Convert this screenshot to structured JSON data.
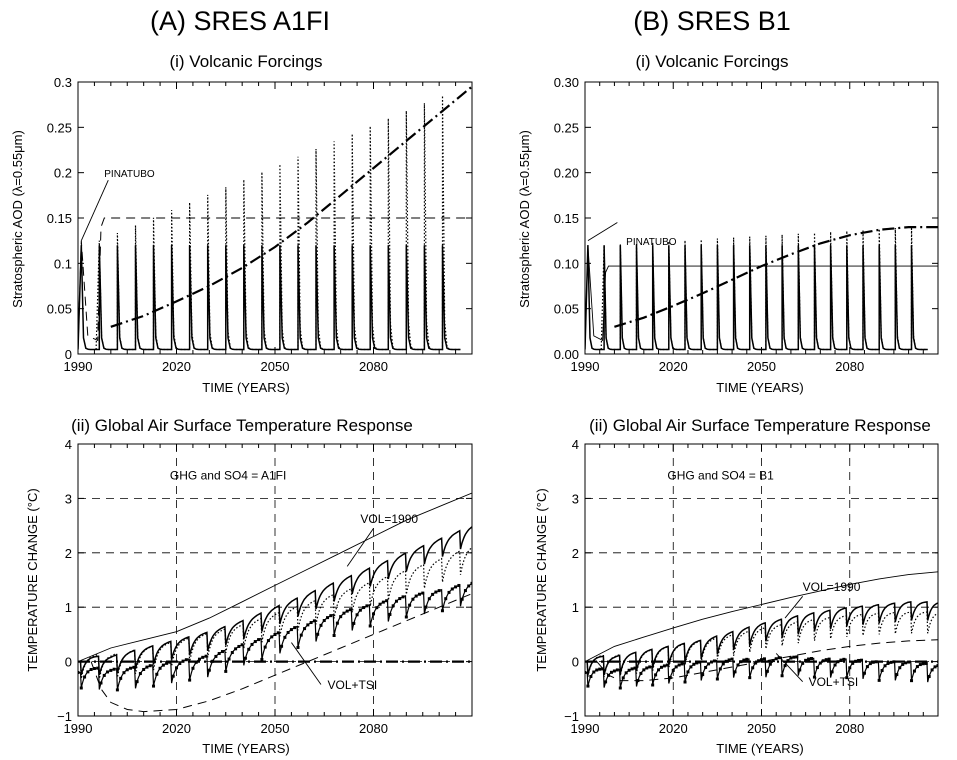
{
  "columns": [
    {
      "heading": "(A) SRES A1FI"
    },
    {
      "heading": "(B) SRES B1"
    }
  ],
  "chart_data": [
    {
      "panel": "A-i",
      "type": "line",
      "title": "(i) Volcanic Forcings",
      "xlabel": "TIME (YEARS)",
      "ylabel": "Stratospheric AOD (λ=0.55μm)",
      "xlim": [
        1990,
        2110
      ],
      "ylim": [
        0,
        0.3
      ],
      "xticks": [
        1990,
        2020,
        2050,
        2080
      ],
      "xtick_labels": [
        "1990",
        "2020",
        "2050",
        "2080"
      ],
      "yticks": [
        0,
        0.05,
        0.1,
        0.15,
        0.2,
        0.25,
        0.3
      ],
      "ytick_labels": [
        "0",
        "0.05",
        "0.1",
        "0.15",
        "0.2",
        "0.25",
        "0.3"
      ],
      "grid": false,
      "annotations": [
        {
          "text": "PINATUBO",
          "x": 1991,
          "y": 0.125
        }
      ],
      "series": [
        {
          "style": "solid",
          "kind": "pulses",
          "x_start": 1991,
          "period": 5.5,
          "count": 21,
          "peak": [
            0.12,
            0.12
          ]
        },
        {
          "style": "dotted",
          "kind": "pulses",
          "x_start": 1996.5,
          "period": 5.5,
          "count": 20,
          "peak": [
            0.125,
            0.285
          ]
        },
        {
          "style": "dashed",
          "kind": "line",
          "x": [
            1990,
            1991,
            1993,
            1996,
            1997,
            1998,
            2110
          ],
          "y": [
            0.005,
            0.125,
            0.02,
            0.015,
            0.14,
            0.15,
            0.15
          ]
        },
        {
          "style": "dash-dot",
          "kind": "line",
          "x": [
            2000,
            2010,
            2020,
            2030,
            2040,
            2050,
            2060,
            2070,
            2080,
            2090,
            2100,
            2110
          ],
          "y": [
            0.03,
            0.042,
            0.058,
            0.075,
            0.095,
            0.118,
            0.145,
            0.175,
            0.205,
            0.235,
            0.265,
            0.295
          ]
        }
      ]
    },
    {
      "panel": "B-i",
      "type": "line",
      "title": "(i) Volcanic Forcings",
      "xlabel": "TIME (YEARS)",
      "ylabel": "Stratospheric AOD (λ=0.55μm)",
      "xlim": [
        1990,
        2110
      ],
      "ylim": [
        0,
        0.3
      ],
      "xticks": [
        1990,
        2020,
        2050,
        2080
      ],
      "xtick_labels": [
        "1990",
        "2020",
        "2050",
        "2080"
      ],
      "yticks": [
        0,
        0.05,
        0.1,
        0.15,
        0.2,
        0.25,
        0.3
      ],
      "ytick_labels": [
        "0.00",
        "0.05",
        "0.10",
        "0.15",
        "0.20",
        "0.25",
        "0.30"
      ],
      "grid": false,
      "annotations": [
        {
          "text": "PINATUBO",
          "x": 1991,
          "y": 0.125
        }
      ],
      "series": [
        {
          "style": "solid",
          "kind": "pulses",
          "x_start": 1991,
          "period": 5.5,
          "count": 21,
          "peak": [
            0.12,
            0.12
          ]
        },
        {
          "style": "dotted",
          "kind": "pulses",
          "x_start": 1996.5,
          "period": 5.5,
          "count": 20,
          "peak": [
            0.12,
            0.14
          ]
        },
        {
          "style": "solid-thin",
          "kind": "line",
          "x": [
            1990,
            1991,
            1993,
            1996,
            1997,
            1998,
            2110
          ],
          "y": [
            0.005,
            0.12,
            0.02,
            0.015,
            0.09,
            0.097,
            0.097
          ]
        },
        {
          "style": "dash-dot",
          "kind": "line",
          "x": [
            2000,
            2010,
            2020,
            2030,
            2040,
            2050,
            2060,
            2070,
            2080,
            2090,
            2100,
            2110
          ],
          "y": [
            0.03,
            0.04,
            0.053,
            0.067,
            0.082,
            0.097,
            0.11,
            0.122,
            0.131,
            0.137,
            0.14,
            0.14
          ]
        }
      ]
    },
    {
      "panel": "A-ii",
      "type": "line",
      "title": "(ii) Global Air Surface Temperature Response",
      "xlabel": "TIME (YEARS)",
      "ylabel": "TEMPERATURE CHANGE (°C)",
      "xlim": [
        1990,
        2110
      ],
      "ylim": [
        -1,
        4
      ],
      "xticks": [
        1990,
        2020,
        2050,
        2080
      ],
      "xtick_labels": [
        "1990",
        "2020",
        "2050",
        "2080"
      ],
      "yticks": [
        -1,
        0,
        1,
        2,
        3,
        4
      ],
      "ytick_labels": [
        "−1",
        "0",
        "1",
        "2",
        "3",
        "4"
      ],
      "grid": true,
      "annotations": [
        {
          "text": "GHG and SO4 = A1FI",
          "x": 2018,
          "y": 3.35
        },
        {
          "text": "VOL=1990",
          "x": 2076,
          "y": 2.55
        },
        {
          "text": "VOL+TSI",
          "x": 2066,
          "y": -0.5
        }
      ],
      "series": [
        {
          "name": "VOL=1990",
          "style": "solid-thin",
          "x": [
            1990,
            2000,
            2010,
            2020,
            2030,
            2040,
            2050,
            2060,
            2070,
            2080,
            2090,
            2100,
            2110
          ],
          "y": [
            0.0,
            0.25,
            0.4,
            0.55,
            0.8,
            1.1,
            1.4,
            1.7,
            2.0,
            2.3,
            2.6,
            2.85,
            3.1
          ]
        },
        {
          "style": "solid",
          "kind": "sawtooth",
          "x": [
            1990,
            2000,
            2010,
            2020,
            2030,
            2040,
            2050,
            2060,
            2070,
            2080,
            2090,
            2100,
            2110
          ],
          "y": [
            0.0,
            0.0,
            0.15,
            0.3,
            0.45,
            0.65,
            0.9,
            1.15,
            1.4,
            1.65,
            1.9,
            2.15,
            2.4
          ],
          "amp": 0.35
        },
        {
          "style": "dotted",
          "kind": "sawtooth",
          "x": [
            1990,
            2000,
            2010,
            2020,
            2030,
            2040,
            2050,
            2060,
            2070,
            2080,
            2090,
            2100,
            2110
          ],
          "y": [
            0.0,
            0.0,
            0.12,
            0.25,
            0.4,
            0.55,
            0.75,
            0.95,
            1.15,
            1.35,
            1.55,
            1.75,
            2.0
          ],
          "amp": 0.45
        },
        {
          "name": "VOL+TSI",
          "style": "marker",
          "kind": "sawtooth",
          "x": [
            1990,
            2000,
            2010,
            2020,
            2030,
            2040,
            2050,
            2060,
            2070,
            2080,
            2090,
            2100,
            2110
          ],
          "y": [
            -0.2,
            -0.25,
            -0.2,
            -0.1,
            0.0,
            0.2,
            0.4,
            0.6,
            0.8,
            0.95,
            1.1,
            1.2,
            1.35
          ],
          "amp": 0.4
        },
        {
          "style": "dashed",
          "x": [
            1994,
            1997,
            2000,
            2005,
            2010,
            2020,
            2030,
            2040,
            2050,
            2060,
            2070,
            2080,
            2090,
            2100,
            2110
          ],
          "y": [
            0.0,
            -0.5,
            -0.75,
            -0.88,
            -0.92,
            -0.88,
            -0.72,
            -0.5,
            -0.25,
            0.0,
            0.25,
            0.5,
            0.75,
            1.0,
            1.25
          ]
        },
        {
          "style": "dash-dot-thick",
          "x": [
            1990,
            2110
          ],
          "y": [
            0.0,
            0.0
          ]
        }
      ]
    },
    {
      "panel": "B-ii",
      "type": "line",
      "title": "(ii) Global Air Surface Temperature Response",
      "xlabel": "TIME (YEARS)",
      "ylabel": "TEMPERATURE CHANGE (°C)",
      "xlim": [
        1990,
        2110
      ],
      "ylim": [
        -1,
        4
      ],
      "xticks": [
        1990,
        2020,
        2050,
        2080
      ],
      "xtick_labels": [
        "1990",
        "2020",
        "2050",
        "2080"
      ],
      "yticks": [
        -1,
        0,
        1,
        2,
        3,
        4
      ],
      "ytick_labels": [
        "−1",
        "0",
        "1",
        "2",
        "3",
        "4"
      ],
      "grid": true,
      "annotations": [
        {
          "text": "GHG and SO4 = B1",
          "x": 2018,
          "y": 3.35
        },
        {
          "text": "VOL=1990",
          "x": 2064,
          "y": 1.3
        },
        {
          "text": "VOL+TSI",
          "x": 2066,
          "y": -0.45
        }
      ],
      "series": [
        {
          "name": "VOL=1990",
          "style": "solid-thin",
          "x": [
            1990,
            2000,
            2010,
            2020,
            2030,
            2040,
            2050,
            2060,
            2070,
            2080,
            2090,
            2100,
            2110
          ],
          "y": [
            0.0,
            0.28,
            0.45,
            0.62,
            0.78,
            0.92,
            1.05,
            1.18,
            1.3,
            1.42,
            1.52,
            1.6,
            1.65
          ]
        },
        {
          "style": "solid",
          "kind": "sawtooth",
          "x": [
            1990,
            2000,
            2010,
            2020,
            2030,
            2040,
            2050,
            2060,
            2070,
            2080,
            2090,
            2100,
            2110
          ],
          "y": [
            0.0,
            0.0,
            0.1,
            0.2,
            0.3,
            0.45,
            0.6,
            0.72,
            0.82,
            0.9,
            0.95,
            1.0,
            1.0
          ],
          "amp": 0.35
        },
        {
          "style": "dotted",
          "kind": "sawtooth",
          "x": [
            1990,
            2000,
            2010,
            2020,
            2030,
            2040,
            2050,
            2060,
            2070,
            2080,
            2090,
            2100,
            2110
          ],
          "y": [
            0.0,
            0.0,
            0.08,
            0.18,
            0.27,
            0.38,
            0.5,
            0.6,
            0.68,
            0.74,
            0.78,
            0.8,
            0.8
          ],
          "amp": 0.4
        },
        {
          "name": "VOL+TSI",
          "style": "marker",
          "kind": "sawtooth",
          "x": [
            1990,
            2000,
            2010,
            2020,
            2030,
            2040,
            2050,
            2060,
            2070,
            2080,
            2090,
            2100,
            2110
          ],
          "y": [
            -0.2,
            -0.25,
            -0.2,
            -0.15,
            -0.1,
            -0.05,
            -0.05,
            0.0,
            -0.05,
            -0.05,
            -0.1,
            -0.1,
            -0.15
          ],
          "amp": 0.35
        },
        {
          "style": "dashed",
          "x": [
            1994,
            1998,
            2002,
            2010,
            2020,
            2030,
            2040,
            2050,
            2060,
            2070,
            2080,
            2090,
            2100,
            2110
          ],
          "y": [
            0.0,
            -0.25,
            -0.35,
            -0.35,
            -0.3,
            -0.2,
            -0.1,
            0.0,
            0.1,
            0.2,
            0.28,
            0.34,
            0.38,
            0.4
          ]
        },
        {
          "style": "dash-dot-thick",
          "x": [
            1990,
            2110
          ],
          "y": [
            0.0,
            0.0
          ]
        }
      ]
    }
  ]
}
